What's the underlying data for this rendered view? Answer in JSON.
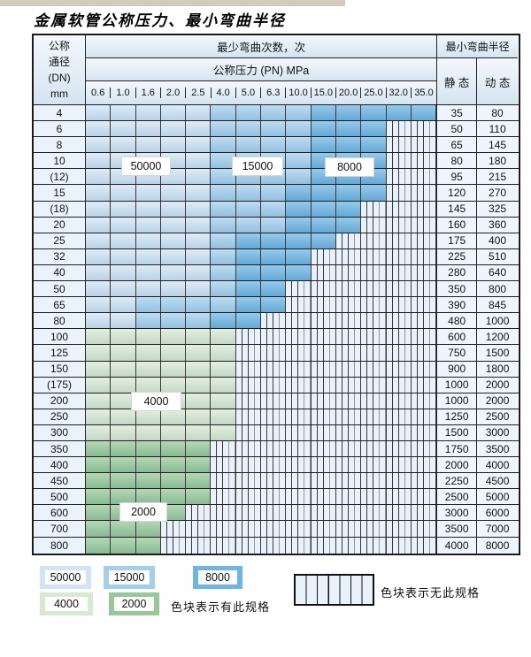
{
  "title": "金属软管公称压力、最小弯曲半径",
  "colors": {
    "c50000": "#cfe4f5",
    "c15000": "#a3cfee",
    "c8000": "#6db5e4",
    "c4000": "#d8e9d2",
    "c2000": "#97c89a",
    "no_spec_bg": "#e9f2fb"
  },
  "table": {
    "corner_lines": [
      "公称",
      "通径",
      "(DN)",
      "mm"
    ],
    "bend_times_header": "最少弯曲次数，次",
    "pressure_header": "公称压力 (PN) MPa",
    "radius_header": "最小弯曲半径",
    "static_label": "静 态",
    "dynamic_label": "动 态",
    "pressure_columns": [
      "0.6",
      "1.0",
      "1.6",
      "2.0",
      "2.5",
      "4.0",
      "5.0",
      "6.3",
      "10.0",
      "15.0",
      "20.0",
      "25.0",
      "32.0",
      "35.0"
    ],
    "rows": [
      {
        "dn": "4",
        "zones": [
          {
            "cycles": "50000",
            "span": 5
          },
          {
            "cycles": "15000",
            "span": 4
          },
          {
            "cycles": "8000",
            "span": 5
          }
        ],
        "static": "35",
        "dynamic": "80"
      },
      {
        "dn": "6",
        "zones": [
          {
            "cycles": "50000",
            "span": 5
          },
          {
            "cycles": "15000",
            "span": 4
          },
          {
            "cycles": "8000",
            "span": 3
          }
        ],
        "static": "50",
        "dynamic": "110"
      },
      {
        "dn": "8",
        "zones": [
          {
            "cycles": "50000",
            "span": 5
          },
          {
            "cycles": "15000",
            "span": 4
          },
          {
            "cycles": "8000",
            "span": 3
          }
        ],
        "static": "65",
        "dynamic": "145"
      },
      {
        "dn": "10",
        "zones": [
          {
            "cycles": "50000",
            "span": 5
          },
          {
            "cycles": "15000",
            "span": 4
          },
          {
            "cycles": "8000",
            "span": 3
          }
        ],
        "static": "80",
        "dynamic": "180"
      },
      {
        "dn": "(12)",
        "zones": [
          {
            "cycles": "50000",
            "span": 5
          },
          {
            "cycles": "15000",
            "span": 4
          },
          {
            "cycles": "8000",
            "span": 3
          }
        ],
        "static": "95",
        "dynamic": "215"
      },
      {
        "dn": "15",
        "zones": [
          {
            "cycles": "50000",
            "span": 5
          },
          {
            "cycles": "15000",
            "span": 3
          },
          {
            "cycles": "8000",
            "span": 4
          }
        ],
        "static": "120",
        "dynamic": "270"
      },
      {
        "dn": "(18)",
        "zones": [
          {
            "cycles": "50000",
            "span": 5
          },
          {
            "cycles": "15000",
            "span": 3
          },
          {
            "cycles": "8000",
            "span": 3
          }
        ],
        "static": "145",
        "dynamic": "325"
      },
      {
        "dn": "20",
        "zones": [
          {
            "cycles": "50000",
            "span": 5
          },
          {
            "cycles": "15000",
            "span": 3
          },
          {
            "cycles": "8000",
            "span": 3
          }
        ],
        "static": "160",
        "dynamic": "360"
      },
      {
        "dn": "25",
        "zones": [
          {
            "cycles": "50000",
            "span": 5
          },
          {
            "cycles": "15000",
            "span": 1
          },
          {
            "cycles": "8000",
            "span": 4
          }
        ],
        "static": "175",
        "dynamic": "400"
      },
      {
        "dn": "32",
        "zones": [
          {
            "cycles": "50000",
            "span": 5
          },
          {
            "cycles": "15000",
            "span": 1
          },
          {
            "cycles": "8000",
            "span": 3
          }
        ],
        "static": "225",
        "dynamic": "510"
      },
      {
        "dn": "40",
        "zones": [
          {
            "cycles": "50000",
            "span": 5
          },
          {
            "cycles": "15000",
            "span": 1
          },
          {
            "cycles": "8000",
            "span": 3
          }
        ],
        "static": "280",
        "dynamic": "640"
      },
      {
        "dn": "50",
        "zones": [
          {
            "cycles": "50000",
            "span": 5
          },
          {
            "cycles": "15000",
            "span": 1
          },
          {
            "cycles": "8000",
            "span": 2
          }
        ],
        "static": "350",
        "dynamic": "800"
      },
      {
        "dn": "65",
        "zones": [
          {
            "cycles": "50000",
            "span": 2
          },
          {
            "cycles": "15000",
            "span": 4
          },
          {
            "cycles": "8000",
            "span": 2
          }
        ],
        "static": "390",
        "dynamic": "845"
      },
      {
        "dn": "80",
        "zones": [
          {
            "cycles": "50000",
            "span": 2
          },
          {
            "cycles": "15000",
            "span": 3
          },
          {
            "cycles": "8000",
            "span": 2
          }
        ],
        "static": "480",
        "dynamic": "1000"
      },
      {
        "dn": "100",
        "zones": [
          {
            "cycles": "4000",
            "span": 6
          }
        ],
        "static": "600",
        "dynamic": "1200"
      },
      {
        "dn": "125",
        "zones": [
          {
            "cycles": "4000",
            "span": 6
          }
        ],
        "static": "750",
        "dynamic": "1500"
      },
      {
        "dn": "150",
        "zones": [
          {
            "cycles": "4000",
            "span": 6
          }
        ],
        "static": "900",
        "dynamic": "1800"
      },
      {
        "dn": "(175)",
        "zones": [
          {
            "cycles": "4000",
            "span": 6
          }
        ],
        "static": "1000",
        "dynamic": "2000"
      },
      {
        "dn": "200",
        "zones": [
          {
            "cycles": "4000",
            "span": 6
          }
        ],
        "static": "1000",
        "dynamic": "2000"
      },
      {
        "dn": "250",
        "zones": [
          {
            "cycles": "4000",
            "span": 6
          }
        ],
        "static": "1250",
        "dynamic": "2500"
      },
      {
        "dn": "300",
        "zones": [
          {
            "cycles": "4000",
            "span": 6
          }
        ],
        "static": "1500",
        "dynamic": "3000"
      },
      {
        "dn": "350",
        "zones": [
          {
            "cycles": "2000",
            "span": 5
          }
        ],
        "static": "1750",
        "dynamic": "3500"
      },
      {
        "dn": "400",
        "zones": [
          {
            "cycles": "2000",
            "span": 5
          }
        ],
        "static": "2000",
        "dynamic": "4000"
      },
      {
        "dn": "450",
        "zones": [
          {
            "cycles": "2000",
            "span": 5
          }
        ],
        "static": "2250",
        "dynamic": "4500"
      },
      {
        "dn": "500",
        "zones": [
          {
            "cycles": "2000",
            "span": 5
          }
        ],
        "static": "2500",
        "dynamic": "5000"
      },
      {
        "dn": "600",
        "zones": [
          {
            "cycles": "2000",
            "span": 4
          }
        ],
        "static": "3000",
        "dynamic": "6000"
      },
      {
        "dn": "700",
        "zones": [
          {
            "cycles": "2000",
            "span": 3
          }
        ],
        "static": "3500",
        "dynamic": "7000"
      },
      {
        "dn": "800",
        "zones": [
          {
            "cycles": "2000",
            "span": 3
          }
        ],
        "static": "4000",
        "dynamic": "8000"
      }
    ]
  },
  "zone_labels": [
    {
      "text": "50000"
    },
    {
      "text": "15000"
    },
    {
      "text": "8000"
    },
    {
      "text": "4000"
    },
    {
      "text": "2000"
    }
  ],
  "legend": {
    "swatches": [
      {
        "text": "50000"
      },
      {
        "text": "15000"
      },
      {
        "text": "8000"
      },
      {
        "text": "4000"
      },
      {
        "text": "2000"
      }
    ],
    "has_spec_text": "色块表示有此规格",
    "no_spec_text": "色块表示无此规格"
  }
}
